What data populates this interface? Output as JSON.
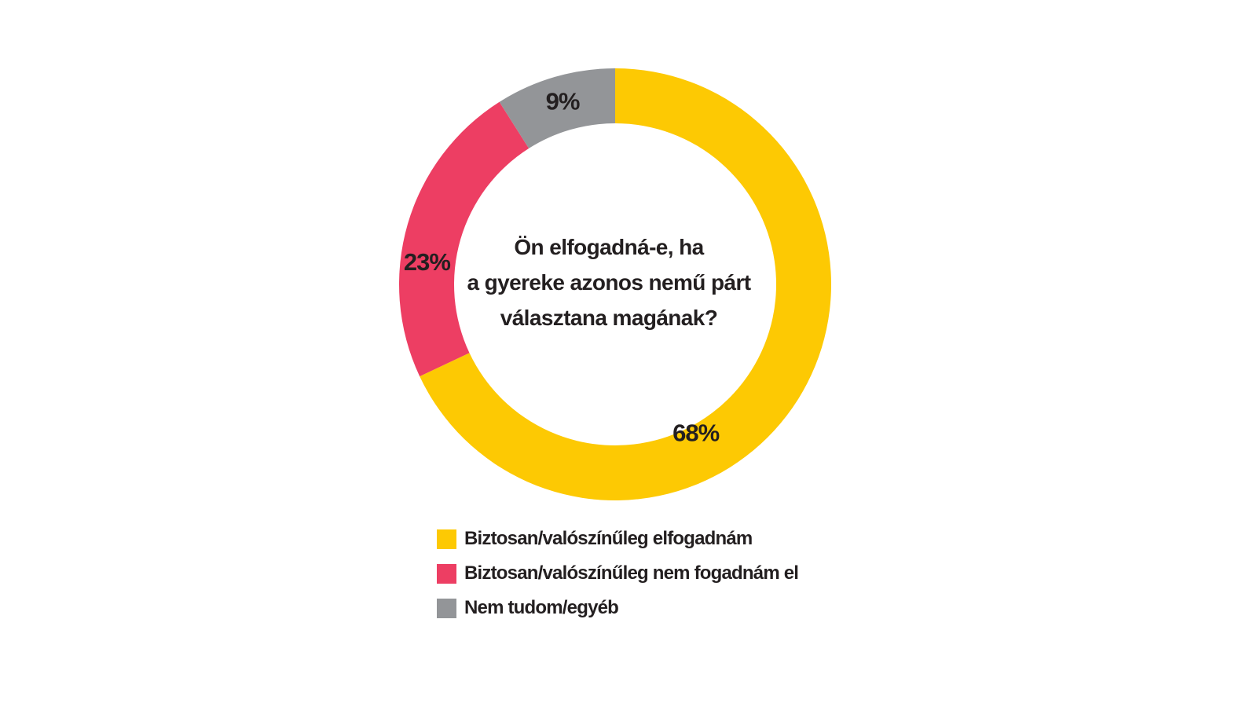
{
  "chart_data": {
    "type": "pie",
    "title": "Ön elfogadná-e, ha a gyereke azonos nemű párt választana magának?",
    "title_lines": [
      "Ön elfogadná-e, ha",
      "a gyereke azonos nemű párt",
      "választana magának?"
    ],
    "donut": true,
    "legend_position": "bottom",
    "categories": [
      "Biztosan/valószínűleg elfogadnám",
      "Biztosan/valószínűleg nem fogadnám el",
      "Nem tudom/egyéb"
    ],
    "values": [
      68,
      23,
      9
    ],
    "value_labels": [
      "68%",
      "23%",
      "9%"
    ],
    "colors": [
      "#fdc903",
      "#ed3e63",
      "#939598"
    ]
  }
}
